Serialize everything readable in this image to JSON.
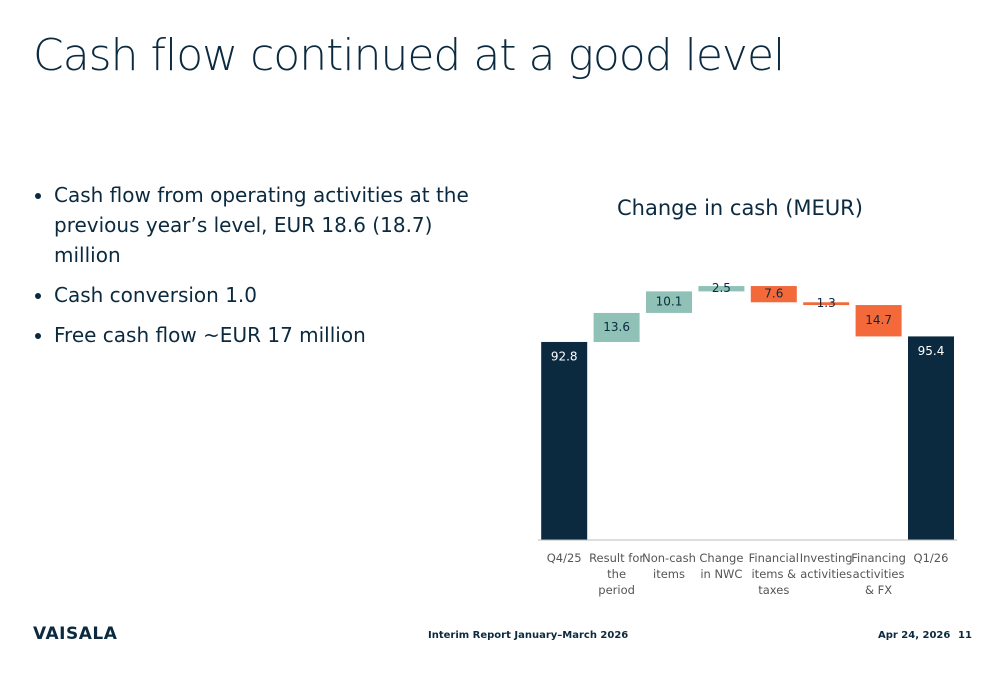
{
  "title": "Cash flow continued at a good level",
  "bullets": [
    "Cash flow from operating activities at the previous year’s level, EUR 18.6 (18.7) million",
    "Cash conversion 1.0",
    "Free cash flow ~EUR 17 million"
  ],
  "chart_data": {
    "type": "waterfall",
    "title": "Change in cash (MEUR)",
    "categories": [
      "Q4/25",
      "Result for the period",
      "Non-cash items",
      "Change in NWC",
      "Financial items & taxes",
      "Investing activities",
      "Financing activities & FX",
      "Q1/26"
    ],
    "values": [
      92.8,
      13.6,
      10.1,
      2.5,
      -7.6,
      -1.3,
      -14.7,
      95.4
    ],
    "value_labels": [
      "92.8",
      "13.6",
      "10.1",
      "2.5",
      "7.6",
      "1.3",
      "14.7",
      "95.4"
    ],
    "colors": {
      "total": "#0b2a3f",
      "increase": "#8fc1b6",
      "decrease": "#f4693a"
    }
  },
  "footer": {
    "logo": "VAISALA",
    "report": "Interim Report January–March 2026",
    "date": "Apr 24, 2026",
    "page": "11"
  }
}
